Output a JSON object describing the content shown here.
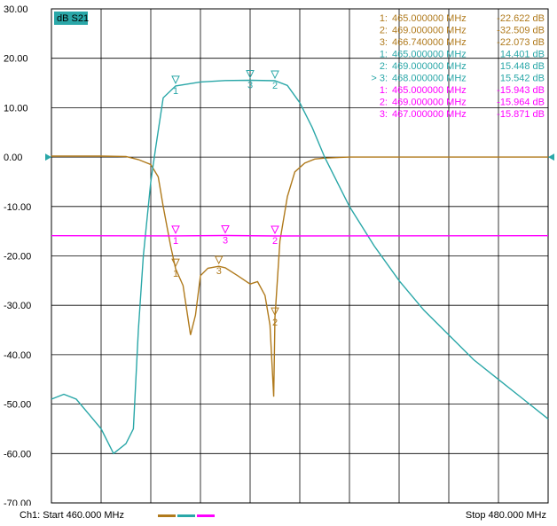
{
  "chart_data": {
    "type": "line",
    "title": "dB S21",
    "xlim": [
      460,
      480
    ],
    "ylim": [
      -70,
      30
    ],
    "x_unit": "MHz",
    "y_unit": "dB",
    "y_ticks": [
      "30.00",
      "20.00",
      "10.00",
      "0.00",
      "-10.00",
      "-20.00",
      "-30.00",
      "-40.00",
      "-50.00",
      "-60.00",
      "-70.00"
    ],
    "reference_level": "0.00",
    "grid": true,
    "legend": "bottom-left",
    "series": [
      {
        "color": "#b07a1c",
        "x": [
          460,
          461,
          462,
          463,
          463.5,
          464.0,
          464.3,
          464.5,
          464.8,
          465.0,
          465.3,
          465.6,
          465.8,
          466.0,
          466.3,
          466.74,
          467.0,
          467.5,
          468.0,
          468.3,
          468.6,
          468.8,
          468.95,
          469.0,
          469.2,
          469.5,
          469.8,
          470.2,
          470.6,
          471,
          472,
          474,
          476,
          478,
          480
        ],
        "y": [
          0.2,
          0.2,
          0.2,
          0.1,
          -0.5,
          -1.5,
          -4,
          -10,
          -18,
          -22.6,
          -26,
          -36,
          -32,
          -24,
          -22.5,
          -22.1,
          -22.4,
          -24,
          -25.7,
          -25.2,
          -28,
          -34,
          -48.5,
          -32.5,
          -17,
          -8,
          -3,
          -1.2,
          -0.4,
          -0.2,
          0,
          0,
          0,
          0,
          0
        ]
      },
      {
        "color": "#2aa7a8",
        "x": [
          460,
          460.5,
          461,
          461.5,
          462,
          462.5,
          463,
          463.3,
          463.5,
          463.7,
          463.9,
          464.0,
          464.2,
          464.5,
          465.0,
          466,
          467,
          468.0,
          469.0,
          469.5,
          470.0,
          470.5,
          471,
          471.5,
          472,
          473,
          474,
          475,
          476,
          477,
          478,
          479,
          480
        ],
        "y": [
          -49,
          -48,
          -49,
          -52,
          -55,
          -60,
          -58,
          -55,
          -35,
          -20,
          -10,
          -5,
          2,
          12,
          14.4,
          15.2,
          15.5,
          15.54,
          15.45,
          14.5,
          11,
          6,
          0,
          -5,
          -10,
          -18,
          -25,
          -31,
          -36,
          -41,
          -45,
          -49,
          -53
        ]
      },
      {
        "color": "#ff00ff",
        "x": [
          460,
          465,
          467,
          469,
          480
        ],
        "y": [
          -15.9,
          -15.943,
          -15.871,
          -15.964,
          -15.9
        ]
      }
    ],
    "markers": [
      {
        "trace": 1,
        "id": "1",
        "label": "465.000000 MHz",
        "value": "-22.622 dB",
        "x": 465.0,
        "y": -22.622
      },
      {
        "trace": 1,
        "id": "2",
        "label": "469.000000 MHz",
        "value": "-32.509 dB",
        "x": 469.0,
        "y": -32.509
      },
      {
        "trace": 1,
        "id": "3",
        "label": "466.740000 MHz",
        "value": "-22.073 dB",
        "x": 466.74,
        "y": -22.073
      },
      {
        "trace": 2,
        "id": "1",
        "label": "465.000000 MHz",
        "value": "14.401 dB",
        "x": 465.0,
        "y": 14.401
      },
      {
        "trace": 2,
        "id": "2",
        "label": "469.000000 MHz",
        "value": "15.448 dB",
        "x": 469.0,
        "y": 15.448
      },
      {
        "trace": 2,
        "id": "3",
        "prefix": ">",
        "label": "468.000000 MHz",
        "value": "15.542 dB",
        "x": 468.0,
        "y": 15.542
      },
      {
        "trace": 3,
        "id": "1",
        "label": "465.000000 MHz",
        "value": "-15.943 dB",
        "x": 465.0,
        "y": -15.943
      },
      {
        "trace": 3,
        "id": "2",
        "label": "469.000000 MHz",
        "value": "-15.964 dB",
        "x": 469.0,
        "y": -15.964
      },
      {
        "trace": 3,
        "id": "3",
        "label": "467.000000 MHz",
        "value": "-15.871 dB",
        "x": 467.0,
        "y": -15.871
      }
    ]
  },
  "footer": {
    "start": "Ch1: Start  460.000 MHz",
    "stop": "Stop  480.000 MHz"
  }
}
